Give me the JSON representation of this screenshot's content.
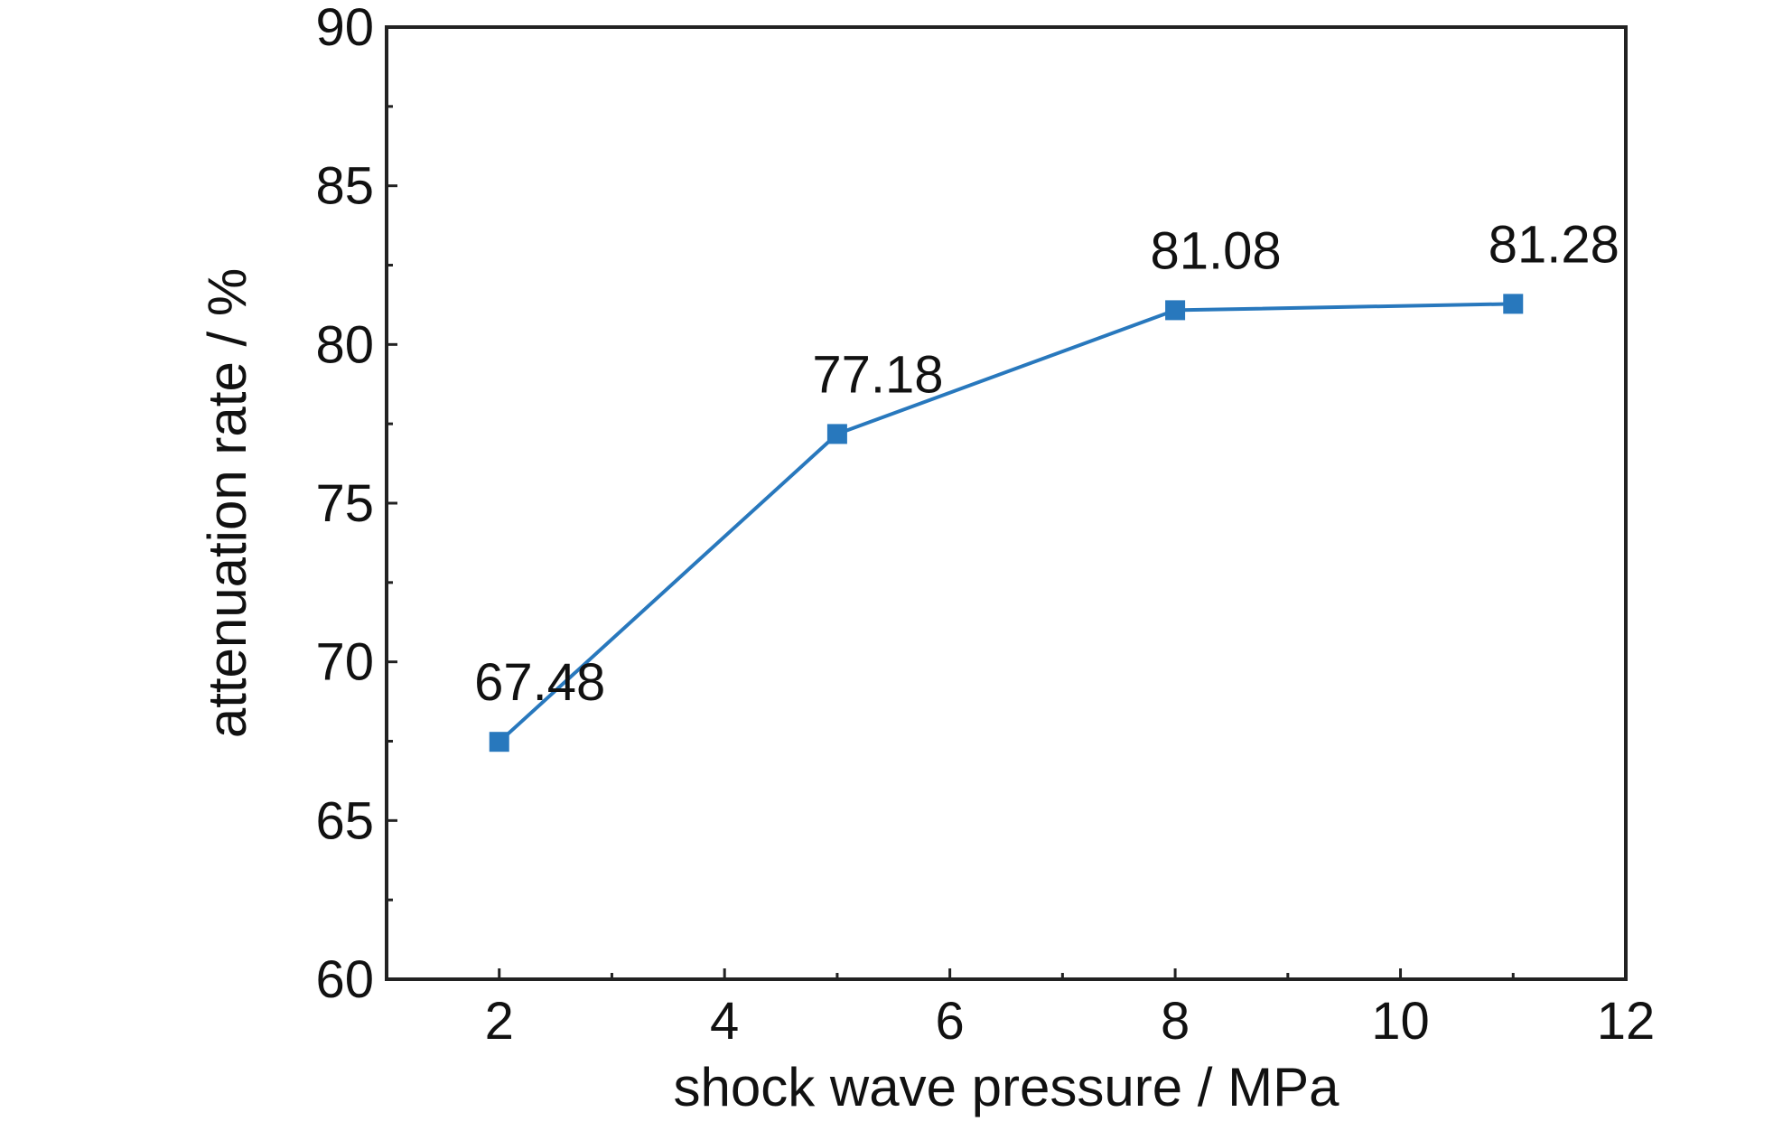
{
  "chart_data": {
    "type": "line",
    "title": "",
    "xlabel": "shock wave pressure / MPa",
    "ylabel": "attenuation rate / %",
    "xlim": [
      1,
      12
    ],
    "ylim": [
      60,
      90
    ],
    "x_ticks": [
      2,
      4,
      6,
      8,
      10,
      12
    ],
    "y_ticks": [
      60,
      65,
      70,
      75,
      80,
      85,
      90
    ],
    "grid": false,
    "legend": "none",
    "series": [
      {
        "color": "#2878bd",
        "marker": "square",
        "points": [
          {
            "x": 2,
            "y": 67.48,
            "label": "67.48"
          },
          {
            "x": 5,
            "y": 77.18,
            "label": "77.18"
          },
          {
            "x": 8,
            "y": 81.08,
            "label": "81.08"
          },
          {
            "x": 11,
            "y": 81.28,
            "label": "81.28"
          }
        ]
      }
    ]
  }
}
